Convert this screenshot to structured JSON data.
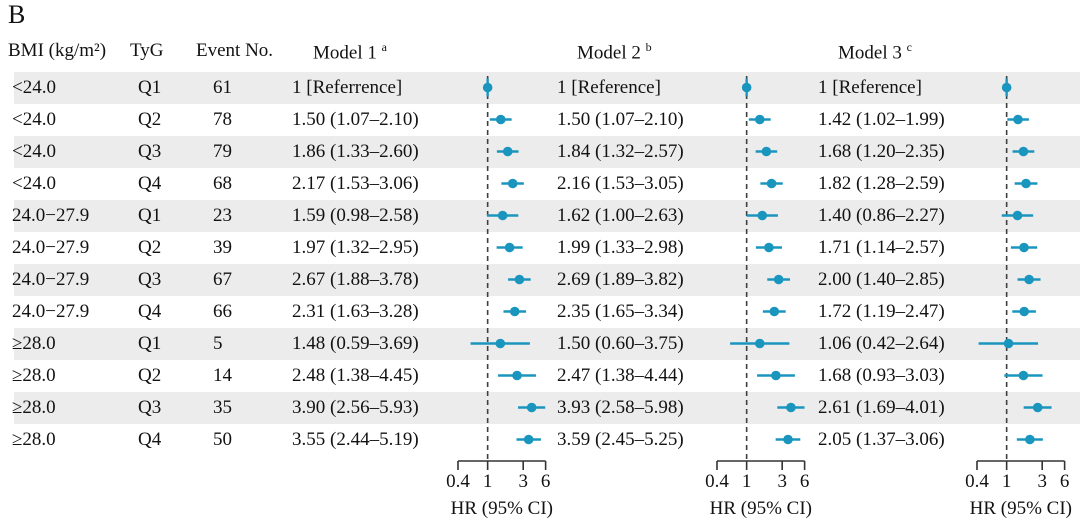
{
  "panel_label": "B",
  "accent_color": "#1a96be",
  "stripe_color": "#ececec",
  "dashed_line_color": "#3f3f3f",
  "columns": {
    "bmi": "BMI (kg/m²)",
    "tyg": "TyG",
    "event": "Event No.",
    "model1": "Model 1",
    "model1_sup": "a",
    "model2": "Model 2",
    "model2_sup": "b",
    "model3": "Model 3",
    "model3_sup": "c"
  },
  "axis": {
    "scale": "log",
    "ticks": [
      0.4,
      1,
      3,
      6
    ],
    "tick_labels": [
      "0.4",
      "1",
      "3",
      "6"
    ],
    "label": "HR (95% CI)",
    "reference_line": 1
  },
  "chart_data": {
    "type": "forest",
    "panels": [
      "Model 1",
      "Model 2",
      "Model 3"
    ],
    "rows": [
      {
        "bmi": "<24.0",
        "tyg": "Q1",
        "event": "61",
        "models": [
          {
            "label": "1 [Referrence]",
            "hr": 1,
            "lo": null,
            "hi": null,
            "ref": true
          },
          {
            "label": "1 [Reference]",
            "hr": 1,
            "lo": null,
            "hi": null,
            "ref": true
          },
          {
            "label": "1 [Reference]",
            "hr": 1,
            "lo": null,
            "hi": null,
            "ref": true
          }
        ]
      },
      {
        "bmi": "<24.0",
        "tyg": "Q2",
        "event": "78",
        "models": [
          {
            "label": "1.50 (1.07–2.10)",
            "hr": 1.5,
            "lo": 1.07,
            "hi": 2.1
          },
          {
            "label": "1.50 (1.07–2.10)",
            "hr": 1.5,
            "lo": 1.07,
            "hi": 2.1
          },
          {
            "label": "1.42 (1.02–1.99)",
            "hr": 1.42,
            "lo": 1.02,
            "hi": 1.99
          }
        ]
      },
      {
        "bmi": "<24.0",
        "tyg": "Q3",
        "event": "79",
        "models": [
          {
            "label": "1.86 (1.33–2.60)",
            "hr": 1.86,
            "lo": 1.33,
            "hi": 2.6
          },
          {
            "label": "1.84 (1.32–2.57)",
            "hr": 1.84,
            "lo": 1.32,
            "hi": 2.57
          },
          {
            "label": "1.68 (1.20–2.35)",
            "hr": 1.68,
            "lo": 1.2,
            "hi": 2.35
          }
        ]
      },
      {
        "bmi": "<24.0",
        "tyg": "Q4",
        "event": "68",
        "models": [
          {
            "label": "2.17 (1.53–3.06)",
            "hr": 2.17,
            "lo": 1.53,
            "hi": 3.06
          },
          {
            "label": "2.16 (1.53–3.05)",
            "hr": 2.16,
            "lo": 1.53,
            "hi": 3.05
          },
          {
            "label": "1.82 (1.28–2.59)",
            "hr": 1.82,
            "lo": 1.28,
            "hi": 2.59
          }
        ]
      },
      {
        "bmi": "24.0−27.9",
        "tyg": "Q1",
        "event": "23",
        "models": [
          {
            "label": "1.59 (0.98–2.58)",
            "hr": 1.59,
            "lo": 0.98,
            "hi": 2.58
          },
          {
            "label": "1.62 (1.00–2.63)",
            "hr": 1.62,
            "lo": 1.0,
            "hi": 2.63
          },
          {
            "label": "1.40 (0.86–2.27)",
            "hr": 1.4,
            "lo": 0.86,
            "hi": 2.27
          }
        ]
      },
      {
        "bmi": "24.0−27.9",
        "tyg": "Q2",
        "event": "39",
        "models": [
          {
            "label": "1.97 (1.32–2.95)",
            "hr": 1.97,
            "lo": 1.32,
            "hi": 2.95
          },
          {
            "label": "1.99 (1.33–2.98)",
            "hr": 1.99,
            "lo": 1.33,
            "hi": 2.98
          },
          {
            "label": "1.71 (1.14–2.57)",
            "hr": 1.71,
            "lo": 1.14,
            "hi": 2.57
          }
        ]
      },
      {
        "bmi": "24.0−27.9",
        "tyg": "Q3",
        "event": "67",
        "models": [
          {
            "label": "2.67 (1.88–3.78)",
            "hr": 2.67,
            "lo": 1.88,
            "hi": 3.78
          },
          {
            "label": "2.69 (1.89–3.82)",
            "hr": 2.69,
            "lo": 1.89,
            "hi": 3.82
          },
          {
            "label": "2.00 (1.40–2.85)",
            "hr": 2.0,
            "lo": 1.4,
            "hi": 2.85
          }
        ]
      },
      {
        "bmi": "24.0−27.9",
        "tyg": "Q4",
        "event": "66",
        "models": [
          {
            "label": "2.31 (1.63–3.28)",
            "hr": 2.31,
            "lo": 1.63,
            "hi": 3.28
          },
          {
            "label": "2.35 (1.65–3.34)",
            "hr": 2.35,
            "lo": 1.65,
            "hi": 3.34
          },
          {
            "label": "1.72 (1.19–2.47)",
            "hr": 1.72,
            "lo": 1.19,
            "hi": 2.47
          }
        ]
      },
      {
        "bmi": "≥28.0",
        "tyg": "Q1",
        "event": "5",
        "models": [
          {
            "label": "1.48 (0.59–3.69)",
            "hr": 1.48,
            "lo": 0.59,
            "hi": 3.69
          },
          {
            "label": "1.50 (0.60–3.75)",
            "hr": 1.5,
            "lo": 0.6,
            "hi": 3.75
          },
          {
            "label": "1.06 (0.42–2.64)",
            "hr": 1.06,
            "lo": 0.42,
            "hi": 2.64
          }
        ]
      },
      {
        "bmi": "≥28.0",
        "tyg": "Q2",
        "event": "14",
        "models": [
          {
            "label": "2.48 (1.38–4.45)",
            "hr": 2.48,
            "lo": 1.38,
            "hi": 4.45
          },
          {
            "label": "2.47 (1.38–4.44)",
            "hr": 2.47,
            "lo": 1.38,
            "hi": 4.44
          },
          {
            "label": "1.68 (0.93–3.03)",
            "hr": 1.68,
            "lo": 0.93,
            "hi": 3.03
          }
        ]
      },
      {
        "bmi": "≥28.0",
        "tyg": "Q3",
        "event": "35",
        "models": [
          {
            "label": "3.90 (2.56–5.93)",
            "hr": 3.9,
            "lo": 2.56,
            "hi": 5.93
          },
          {
            "label": "3.93 (2.58–5.98)",
            "hr": 3.93,
            "lo": 2.58,
            "hi": 5.98
          },
          {
            "label": "2.61 (1.69–4.01)",
            "hr": 2.61,
            "lo": 1.69,
            "hi": 4.01
          }
        ]
      },
      {
        "bmi": "≥28.0",
        "tyg": "Q4",
        "event": "50",
        "models": [
          {
            "label": "3.55 (2.44–5.19)",
            "hr": 3.55,
            "lo": 2.44,
            "hi": 5.19
          },
          {
            "label": "3.59 (2.45–5.25)",
            "hr": 3.59,
            "lo": 2.45,
            "hi": 5.25
          },
          {
            "label": "2.05 (1.37–3.06)",
            "hr": 2.05,
            "lo": 1.37,
            "hi": 3.06
          }
        ]
      }
    ]
  }
}
